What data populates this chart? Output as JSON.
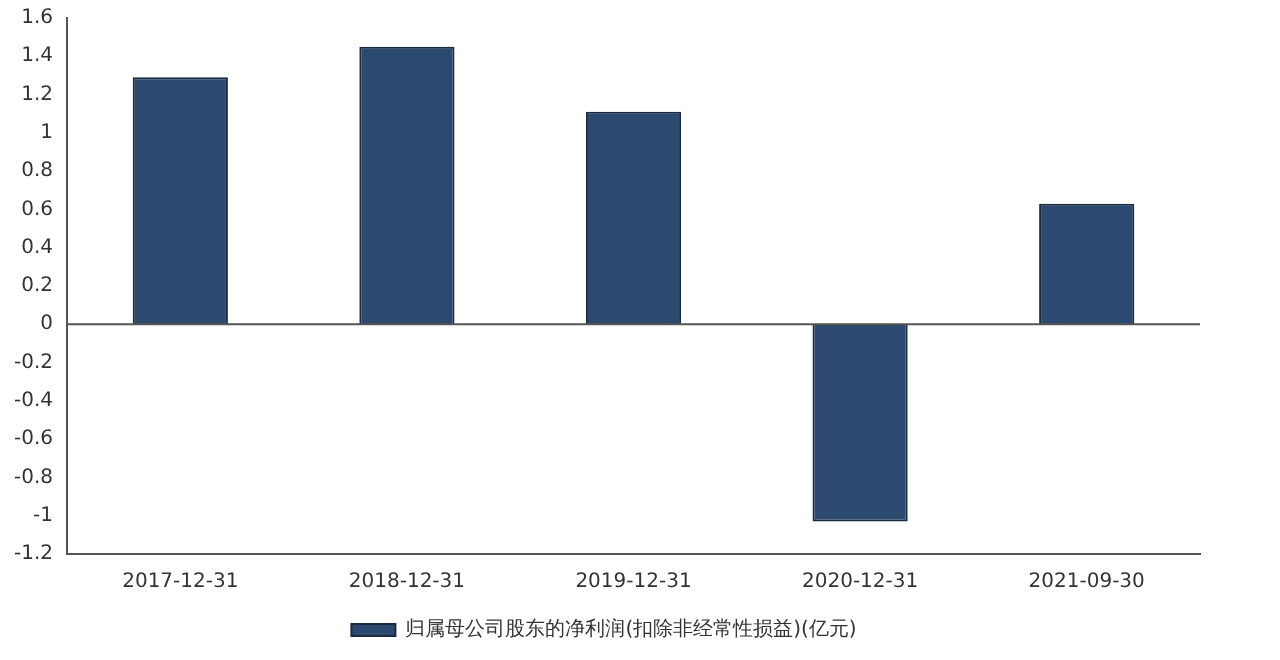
{
  "chart_data": {
    "type": "bar",
    "categories": [
      "2017-12-31",
      "2018-12-31",
      "2019-12-31",
      "2020-12-31",
      "2021-09-30"
    ],
    "series": [
      {
        "name": "归属母公司股东的净利润(扣除非经常性损益)(亿元)",
        "color": "#2c4a70",
        "values": [
          1.29,
          1.45,
          1.11,
          -1.03,
          0.63
        ]
      }
    ],
    "ylim": [
      -1.2,
      1.6
    ],
    "yticks": [
      -1.2,
      -1,
      -0.8,
      -0.6,
      -0.4,
      -0.2,
      0,
      0.2,
      0.4,
      0.6,
      0.8,
      1,
      1.2,
      1.4,
      1.6
    ],
    "legend": "bottom"
  }
}
